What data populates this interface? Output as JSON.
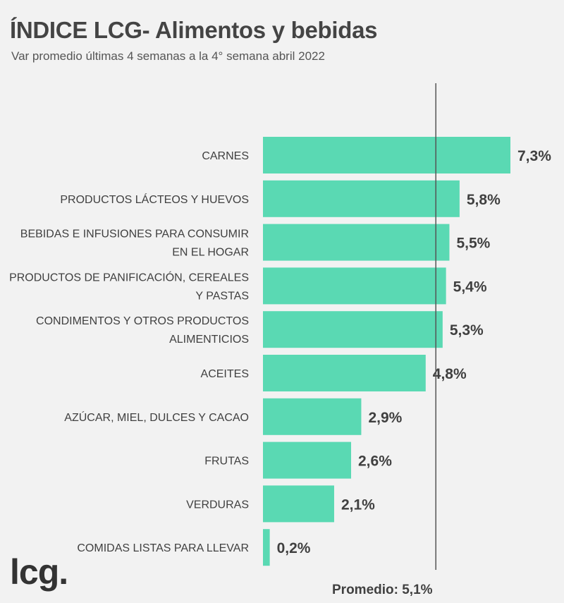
{
  "header": {
    "title": "ÍNDICE LCG- Alimentos y bebidas",
    "subtitle": "Var promedio últimas 4 semanas a la 4° semana abril 2022"
  },
  "brand": {
    "logo_text": "lcg."
  },
  "colors": {
    "bar": "#5ad9b3",
    "reference_line": "#555555",
    "text": "#404040"
  },
  "chart_data": {
    "type": "bar",
    "orientation": "horizontal",
    "title": "ÍNDICE LCG- Alimentos y bebidas",
    "subtitle": "Var promedio últimas 4 semanas a la 4° semana abril 2022",
    "categories": [
      "CARNES",
      "PRODUCTOS LÁCTEOS Y HUEVOS",
      "BEBIDAS E INFUSIONES PARA CONSUMIR EN EL HOGAR",
      "PRODUCTOS DE PANIFICACIÓN, CEREALES Y PASTAS",
      "CONDIMENTOS Y OTROS PRODUCTOS ALIMENTICIOS",
      "ACEITES",
      "AZÚCAR, MIEL, DULCES Y CACAO",
      "FRUTAS",
      "VERDURAS",
      "COMIDAS LISTAS PARA LLEVAR"
    ],
    "category_lines": [
      [
        "CARNES"
      ],
      [
        "PRODUCTOS LÁCTEOS Y HUEVOS"
      ],
      [
        "BEBIDAS E INFUSIONES PARA CONSUMIR",
        "EN EL HOGAR"
      ],
      [
        "PRODUCTOS DE PANIFICACIÓN, CEREALES",
        "Y PASTAS"
      ],
      [
        "CONDIMENTOS Y OTROS PRODUCTOS",
        "ALIMENTICIOS"
      ],
      [
        "ACEITES"
      ],
      [
        "AZÚCAR, MIEL, DULCES Y CACAO"
      ],
      [
        "FRUTAS"
      ],
      [
        "VERDURAS"
      ],
      [
        "COMIDAS LISTAS PARA LLEVAR"
      ]
    ],
    "values": [
      7.3,
      5.8,
      5.5,
      5.4,
      5.3,
      4.8,
      2.9,
      2.6,
      2.1,
      0.2
    ],
    "value_labels": [
      "7,3%",
      "5,8%",
      "5,5%",
      "5,4%",
      "5,3%",
      "4,8%",
      "2,9%",
      "2,6%",
      "2,1%",
      "0,2%"
    ],
    "reference_line": {
      "value": 5.1,
      "label": "Promedio: 5,1%"
    },
    "xlim": [
      0,
      7.3
    ],
    "grid": false,
    "legend": "none"
  }
}
